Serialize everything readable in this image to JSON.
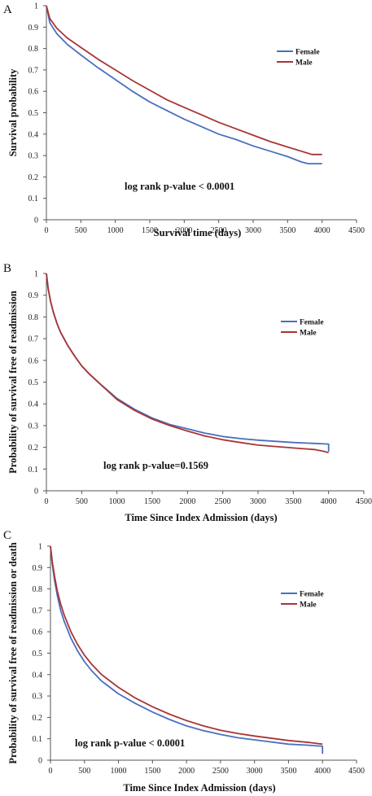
{
  "chart_data": [
    {
      "panel_label": "A",
      "type": "line",
      "xlabel": "Survival time (days)",
      "ylabel": "Survival probability",
      "xlim": [
        0,
        4500
      ],
      "ylim": [
        0,
        1
      ],
      "xticks": [
        "0",
        "500",
        "1000",
        "1500",
        "2000",
        "2500",
        "3000",
        "3500",
        "4000",
        "4500"
      ],
      "yticks": [
        "0",
        "0.1",
        "0.2",
        "0.3",
        "0.4",
        "0.5",
        "0.6",
        "0.7",
        "0.8",
        "0.9",
        "1"
      ],
      "annotation": "log rank p-value < 0.0001",
      "legend_position": "top-right",
      "grid": false,
      "series": [
        {
          "name": "Female",
          "color": "#4a6fbf",
          "points": [
            [
              0,
              1.0
            ],
            [
              50,
              0.92
            ],
            [
              150,
              0.87
            ],
            [
              300,
              0.82
            ],
            [
              500,
              0.77
            ],
            [
              750,
              0.71
            ],
            [
              1000,
              0.655
            ],
            [
              1250,
              0.6
            ],
            [
              1500,
              0.55
            ],
            [
              1750,
              0.51
            ],
            [
              2000,
              0.47
            ],
            [
              2250,
              0.435
            ],
            [
              2500,
              0.4
            ],
            [
              2750,
              0.375
            ],
            [
              3000,
              0.345
            ],
            [
              3250,
              0.32
            ],
            [
              3500,
              0.295
            ],
            [
              3700,
              0.27
            ],
            [
              3800,
              0.262
            ],
            [
              4000,
              0.262
            ]
          ]
        },
        {
          "name": "Male",
          "color": "#a93535",
          "points": [
            [
              0,
              1.0
            ],
            [
              50,
              0.94
            ],
            [
              150,
              0.895
            ],
            [
              300,
              0.85
            ],
            [
              500,
              0.805
            ],
            [
              750,
              0.75
            ],
            [
              1000,
              0.7
            ],
            [
              1250,
              0.65
            ],
            [
              1500,
              0.605
            ],
            [
              1750,
              0.56
            ],
            [
              2000,
              0.525
            ],
            [
              2250,
              0.49
            ],
            [
              2500,
              0.455
            ],
            [
              2750,
              0.425
            ],
            [
              3000,
              0.395
            ],
            [
              3250,
              0.365
            ],
            [
              3500,
              0.34
            ],
            [
              3700,
              0.32
            ],
            [
              3850,
              0.305
            ],
            [
              4000,
              0.305
            ]
          ]
        }
      ]
    },
    {
      "panel_label": "B",
      "type": "line",
      "xlabel": "Time Since Index Admission (days)",
      "ylabel": "Probability of survival free of readmission",
      "xlim": [
        0,
        4500
      ],
      "ylim": [
        0,
        1
      ],
      "xticks": [
        "0",
        "500",
        "1000",
        "1500",
        "2000",
        "2500",
        "3000",
        "3500",
        "4000",
        "4500"
      ],
      "yticks": [
        "0",
        "0.1",
        "0.2",
        "0.3",
        "0.4",
        "0.5",
        "0.6",
        "0.7",
        "0.8",
        "0.9",
        "1"
      ],
      "annotation": "log rank p-value=0.1569",
      "legend_position": "top-right",
      "grid": false,
      "series": [
        {
          "name": "Female",
          "color": "#4a6fbf",
          "points": [
            [
              0,
              1.0
            ],
            [
              25,
              0.93
            ],
            [
              60,
              0.87
            ],
            [
              100,
              0.82
            ],
            [
              150,
              0.77
            ],
            [
              200,
              0.73
            ],
            [
              300,
              0.67
            ],
            [
              400,
              0.62
            ],
            [
              500,
              0.575
            ],
            [
              600,
              0.54
            ],
            [
              750,
              0.495
            ],
            [
              1000,
              0.425
            ],
            [
              1250,
              0.375
            ],
            [
              1500,
              0.335
            ],
            [
              1750,
              0.305
            ],
            [
              2000,
              0.285
            ],
            [
              2250,
              0.265
            ],
            [
              2500,
              0.25
            ],
            [
              2750,
              0.24
            ],
            [
              3000,
              0.233
            ],
            [
              3500,
              0.222
            ],
            [
              3800,
              0.218
            ],
            [
              4000,
              0.215
            ],
            [
              4000,
              0.18
            ]
          ]
        },
        {
          "name": "Male",
          "color": "#a93535",
          "points": [
            [
              0,
              1.0
            ],
            [
              25,
              0.93
            ],
            [
              60,
              0.87
            ],
            [
              100,
              0.82
            ],
            [
              150,
              0.77
            ],
            [
              200,
              0.73
            ],
            [
              300,
              0.67
            ],
            [
              400,
              0.62
            ],
            [
              500,
              0.575
            ],
            [
              600,
              0.54
            ],
            [
              750,
              0.495
            ],
            [
              1000,
              0.42
            ],
            [
              1250,
              0.37
            ],
            [
              1500,
              0.33
            ],
            [
              1750,
              0.3
            ],
            [
              2000,
              0.275
            ],
            [
              2250,
              0.252
            ],
            [
              2500,
              0.235
            ],
            [
              2750,
              0.222
            ],
            [
              3000,
              0.21
            ],
            [
              3500,
              0.197
            ],
            [
              3800,
              0.19
            ],
            [
              3950,
              0.18
            ],
            [
              4000,
              0.175
            ]
          ]
        }
      ]
    },
    {
      "panel_label": "C",
      "type": "line",
      "xlabel": "Time Since Index Admission (days)",
      "ylabel": "Probability of survival free of readmission or death",
      "xlim": [
        0,
        4500
      ],
      "ylim": [
        0,
        1
      ],
      "xticks": [
        "0",
        "500",
        "1000",
        "1500",
        "2000",
        "2500",
        "3000",
        "3500",
        "4000",
        "4500"
      ],
      "yticks": [
        "0",
        "0.1",
        "0.2",
        "0.3",
        "0.4",
        "0.5",
        "0.6",
        "0.7",
        "0.8",
        "0.9",
        "1"
      ],
      "annotation": "log rank p-value < 0.0001",
      "legend_position": "top-right",
      "grid": false,
      "series": [
        {
          "name": "Female",
          "color": "#4a6fbf",
          "points": [
            [
              0,
              1.0
            ],
            [
              25,
              0.92
            ],
            [
              60,
              0.84
            ],
            [
              100,
              0.77
            ],
            [
              150,
              0.7
            ],
            [
              200,
              0.65
            ],
            [
              300,
              0.57
            ],
            [
              400,
              0.51
            ],
            [
              500,
              0.46
            ],
            [
              600,
              0.42
            ],
            [
              750,
              0.37
            ],
            [
              1000,
              0.31
            ],
            [
              1250,
              0.265
            ],
            [
              1500,
              0.225
            ],
            [
              1750,
              0.19
            ],
            [
              2000,
              0.16
            ],
            [
              2250,
              0.138
            ],
            [
              2500,
              0.12
            ],
            [
              2750,
              0.105
            ],
            [
              3000,
              0.095
            ],
            [
              3500,
              0.075
            ],
            [
              3800,
              0.07
            ],
            [
              4000,
              0.065
            ],
            [
              4000,
              0.03
            ]
          ]
        },
        {
          "name": "Male",
          "color": "#a93535",
          "points": [
            [
              0,
              1.0
            ],
            [
              25,
              0.93
            ],
            [
              60,
              0.86
            ],
            [
              100,
              0.79
            ],
            [
              150,
              0.73
            ],
            [
              200,
              0.68
            ],
            [
              300,
              0.6
            ],
            [
              400,
              0.54
            ],
            [
              500,
              0.49
            ],
            [
              600,
              0.45
            ],
            [
              750,
              0.4
            ],
            [
              1000,
              0.34
            ],
            [
              1250,
              0.29
            ],
            [
              1500,
              0.25
            ],
            [
              1750,
              0.215
            ],
            [
              2000,
              0.185
            ],
            [
              2250,
              0.16
            ],
            [
              2500,
              0.14
            ],
            [
              2750,
              0.125
            ],
            [
              3000,
              0.113
            ],
            [
              3500,
              0.092
            ],
            [
              3800,
              0.083
            ],
            [
              4000,
              0.075
            ]
          ]
        }
      ]
    }
  ]
}
